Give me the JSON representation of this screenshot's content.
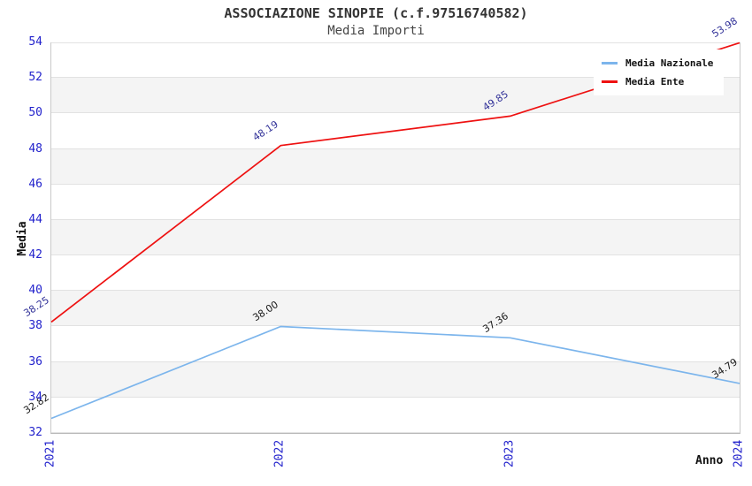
{
  "header": {
    "title": "ASSOCIAZIONE SINOPIE (c.f.97516740582)",
    "subtitle": "Media Importi"
  },
  "chart_data": {
    "type": "line",
    "title": "ASSOCIAZIONE SINOPIE (c.f.97516740582)",
    "subtitle": "Media Importi",
    "xlabel": "Anno",
    "ylabel": "Media",
    "categories": [
      "2021",
      "2022",
      "2023",
      "2024"
    ],
    "series": [
      {
        "name": "Media Nazionale",
        "color": "#7cb5ec",
        "label_color": "#1a1a1a",
        "values": [
          32.82,
          38.0,
          37.36,
          34.79
        ],
        "labels": [
          "32.82",
          "38.00",
          "37.36",
          "34.79"
        ]
      },
      {
        "name": "Media Ente",
        "color": "#ee1111",
        "label_color": "#333399",
        "values": [
          38.25,
          48.19,
          49.85,
          53.98
        ],
        "labels": [
          "38.25",
          "48.19",
          "49.85",
          "53.98"
        ]
      }
    ],
    "ylim": [
      32,
      54
    ],
    "ytick_step": 2,
    "yticks": [
      32,
      34,
      36,
      38,
      40,
      42,
      44,
      46,
      48,
      50,
      52,
      54
    ],
    "grid": "horizontal-bands-alternating",
    "legend_position": "top-right",
    "colors": {
      "tick_label": "#2222cc",
      "band_fill": "#f4f4f4",
      "gridline": "#e2e2e2",
      "title_text": "#333333"
    }
  }
}
